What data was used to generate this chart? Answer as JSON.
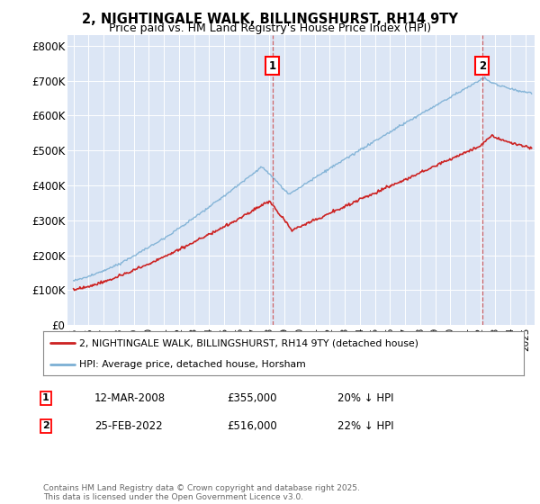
{
  "title": "2, NIGHTINGALE WALK, BILLINGSHURST, RH14 9TY",
  "subtitle": "Price paid vs. HM Land Registry's House Price Index (HPI)",
  "plot_background": "#dce6f5",
  "red_color": "#cc2222",
  "blue_color": "#7bafd4",
  "ylim": [
    0,
    830000
  ],
  "yticks": [
    0,
    100000,
    200000,
    300000,
    400000,
    500000,
    600000,
    700000,
    800000
  ],
  "ytick_labels": [
    "£0",
    "£100K",
    "£200K",
    "£300K",
    "£400K",
    "£500K",
    "£600K",
    "£700K",
    "£800K"
  ],
  "sale1_date": 2008.19,
  "sale1_price": 355000,
  "sale1_label": "1",
  "sale2_date": 2022.12,
  "sale2_price": 516000,
  "sale2_label": "2",
  "legend_red_label": "2, NIGHTINGALE WALK, BILLINGSHURST, RH14 9TY (detached house)",
  "legend_blue_label": "HPI: Average price, detached house, Horsham",
  "note1_label": "1",
  "note1_date": "12-MAR-2008",
  "note1_price": "£355,000",
  "note1_hpi": "20% ↓ HPI",
  "note2_label": "2",
  "note2_date": "25-FEB-2022",
  "note2_price": "£516,000",
  "note2_hpi": "22% ↓ HPI",
  "copyright": "Contains HM Land Registry data © Crown copyright and database right 2025.\nThis data is licensed under the Open Government Licence v3.0.",
  "xmin": 1994.6,
  "xmax": 2025.6
}
